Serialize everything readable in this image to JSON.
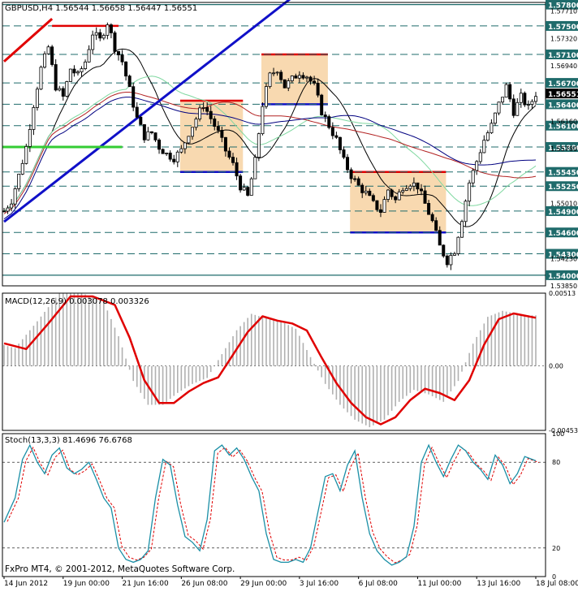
{
  "window": {
    "symbol_info": "GBPUSD,H4  1.56544 1.56658 1.56447 1.56551",
    "copyright": "FxPro MT4, © 2001-2012, MetaQuotes Software Corp."
  },
  "colors": {
    "background": "#ffffff",
    "frame": "#000000",
    "grid": "#9aa0a6",
    "bull_body": "#ffffff",
    "bear_body": "#000000",
    "level_line": "#1f6b6b",
    "level_label_bg": "#1f6b6b",
    "current_price_bg": "#000000",
    "trend_blue": "#1010c8",
    "trend_red": "#e00000",
    "support_green": "#33cc33",
    "box_fill": "#f8d9b0",
    "box_top": "#e00000",
    "box_bottom": "#1010c8",
    "ma_black": "#000000",
    "ma_navy": "#000080",
    "ma_red": "#b22222",
    "ma_green": "#7fd8a0",
    "macd_signal": "#e00000",
    "macd_hist": "#b0b0b0",
    "stoch_main": "#1a8fa6",
    "stoch_signal": "#e00000"
  },
  "chart_data": [
    {
      "type": "candlestick",
      "symbol": "GBPUSD",
      "timeframe": "H4",
      "ohlc_last": {
        "open": 1.56544,
        "high": 1.56658,
        "low": 1.56447,
        "close": 1.56551
      },
      "current_price": "1.56551",
      "ylim": [
        1.5385,
        1.5783
      ],
      "y_axis_labels": [
        "1.57710",
        "1.57320",
        "1.56940",
        "1.56160",
        "1.55780",
        "1.55010",
        "1.54230",
        "1.53850"
      ],
      "levels": [
        {
          "value": 1.578,
          "label": "1.57800"
        },
        {
          "value": 1.575,
          "label": "1.57500"
        },
        {
          "value": 1.571,
          "label": "1.57100"
        },
        {
          "value": 1.567,
          "label": "1.56700"
        },
        {
          "value": 1.564,
          "label": "1.56400"
        },
        {
          "value": 1.561,
          "label": "1.56100"
        },
        {
          "value": 1.558,
          "label": "1.55800"
        },
        {
          "value": 1.5545,
          "label": "1.55450"
        },
        {
          "value": 1.5525,
          "label": "1.55250"
        },
        {
          "value": 1.549,
          "label": "1.54900"
        },
        {
          "value": 1.546,
          "label": "1.54600"
        },
        {
          "value": 1.543,
          "label": "1.54300"
        },
        {
          "value": 1.54,
          "label": "1.54000"
        }
      ],
      "close_path": [
        [
          0,
          1.549
        ],
        [
          2,
          1.5505
        ],
        [
          4,
          1.554
        ],
        [
          6,
          1.558
        ],
        [
          8,
          1.564
        ],
        [
          10,
          1.569
        ],
        [
          12,
          1.572
        ],
        [
          14,
          1.5665
        ],
        [
          16,
          1.565
        ],
        [
          18,
          1.569
        ],
        [
          20,
          1.568
        ],
        [
          22,
          1.57
        ],
        [
          24,
          1.574
        ],
        [
          26,
          1.573
        ],
        [
          28,
          1.5755
        ],
        [
          30,
          1.572
        ],
        [
          32,
          1.57
        ],
        [
          34,
          1.566
        ],
        [
          36,
          1.562
        ],
        [
          38,
          1.5595
        ],
        [
          40,
          1.56
        ],
        [
          42,
          1.558
        ],
        [
          44,
          1.557
        ],
        [
          46,
          1.5565
        ],
        [
          48,
          1.5575
        ],
        [
          50,
          1.56
        ],
        [
          52,
          1.562
        ],
        [
          54,
          1.564
        ],
        [
          56,
          1.562
        ],
        [
          58,
          1.56
        ],
        [
          60,
          1.5575
        ],
        [
          62,
          1.5555
        ],
        [
          64,
          1.5525
        ],
        [
          66,
          1.551
        ],
        [
          68,
          1.556
        ],
        [
          70,
          1.564
        ],
        [
          72,
          1.568
        ],
        [
          74,
          1.569
        ],
        [
          76,
          1.5665
        ],
        [
          78,
          1.5675
        ],
        [
          80,
          1.5685
        ],
        [
          82,
          1.568
        ],
        [
          84,
          1.5665
        ],
        [
          86,
          1.563
        ],
        [
          88,
          1.561
        ],
        [
          90,
          1.559
        ],
        [
          92,
          1.556
        ],
        [
          94,
          1.554
        ],
        [
          96,
          1.5525
        ],
        [
          98,
          1.5515
        ],
        [
          100,
          1.55
        ],
        [
          102,
          1.549
        ],
        [
          104,
          1.552
        ],
        [
          106,
          1.5505
        ],
        [
          108,
          1.5525
        ],
        [
          110,
          1.553
        ],
        [
          112,
          1.5525
        ],
        [
          114,
          1.55
        ],
        [
          116,
          1.5475
        ],
        [
          118,
          1.544
        ],
        [
          120,
          1.542
        ],
        [
          122,
          1.5435
        ],
        [
          124,
          1.548
        ],
        [
          126,
          1.553
        ],
        [
          128,
          1.556
        ],
        [
          130,
          1.559
        ],
        [
          132,
          1.561
        ],
        [
          134,
          1.564
        ],
        [
          136,
          1.5665
        ],
        [
          138,
          1.563
        ],
        [
          140,
          1.565
        ],
        [
          142,
          1.5635
        ],
        [
          144,
          1.5655
        ]
      ],
      "x_labels": [
        "14 Jun 2012",
        "19 Jun 00:00",
        "21 Jun 16:00",
        "26 Jun 08:00",
        "29 Jun 00:00",
        "3 Jul 16:00",
        "6 Jul 08:00",
        "11 Jul 00:00",
        "13 Jul 16:00",
        "18 Jul 08:00"
      ]
    },
    {
      "type": "macd",
      "label": "MACD(12,26,9) 0.003078 0.003326",
      "params": [
        12,
        26,
        9
      ],
      "macd": 0.003078,
      "signal": 0.003326,
      "ylim": [
        -0.00453,
        0.00513
      ],
      "y_axis_labels": [
        "0.00513",
        "0.00",
        "-0.00453"
      ],
      "signal_path": [
        [
          0,
          0.0016
        ],
        [
          6,
          0.0012
        ],
        [
          12,
          0.003
        ],
        [
          18,
          0.0049
        ],
        [
          24,
          0.0049
        ],
        [
          30,
          0.0043
        ],
        [
          34,
          0.002
        ],
        [
          38,
          -0.001
        ],
        [
          42,
          -0.0026
        ],
        [
          46,
          -0.0026
        ],
        [
          50,
          -0.0018
        ],
        [
          54,
          -0.0012
        ],
        [
          58,
          -0.0008
        ],
        [
          62,
          0.0008
        ],
        [
          66,
          0.0024
        ],
        [
          70,
          0.0035
        ],
        [
          74,
          0.0032
        ],
        [
          78,
          0.003
        ],
        [
          82,
          0.0025
        ],
        [
          86,
          0.0006
        ],
        [
          90,
          -0.0012
        ],
        [
          94,
          -0.0026
        ],
        [
          98,
          -0.0036
        ],
        [
          102,
          -0.0041
        ],
        [
          106,
          -0.0036
        ],
        [
          110,
          -0.0024
        ],
        [
          114,
          -0.0016
        ],
        [
          118,
          -0.0019
        ],
        [
          122,
          -0.0024
        ],
        [
          126,
          -0.001
        ],
        [
          130,
          0.0015
        ],
        [
          134,
          0.0033
        ],
        [
          138,
          0.0037
        ],
        [
          144,
          0.0034
        ]
      ]
    },
    {
      "type": "stochastic",
      "label": "Stoch(13,3,3) 81.4696 76.6768",
      "params": [
        13,
        3,
        3
      ],
      "main": 81.4696,
      "signal": 76.6768,
      "ylim": [
        0,
        100
      ],
      "y_axis_labels": [
        "100",
        "80",
        "20",
        "0"
      ],
      "main_path": [
        [
          0,
          38
        ],
        [
          3,
          55
        ],
        [
          5,
          82
        ],
        [
          7,
          92
        ],
        [
          9,
          80
        ],
        [
          11,
          72
        ],
        [
          13,
          85
        ],
        [
          15,
          90
        ],
        [
          17,
          76
        ],
        [
          19,
          72
        ],
        [
          21,
          75
        ],
        [
          23,
          80
        ],
        [
          25,
          68
        ],
        [
          27,
          55
        ],
        [
          29,
          48
        ],
        [
          31,
          20
        ],
        [
          33,
          12
        ],
        [
          35,
          10
        ],
        [
          37,
          12
        ],
        [
          39,
          18
        ],
        [
          41,
          55
        ],
        [
          43,
          82
        ],
        [
          45,
          78
        ],
        [
          47,
          50
        ],
        [
          49,
          28
        ],
        [
          51,
          24
        ],
        [
          53,
          18
        ],
        [
          55,
          40
        ],
        [
          57,
          88
        ],
        [
          59,
          92
        ],
        [
          61,
          85
        ],
        [
          63,
          90
        ],
        [
          65,
          82
        ],
        [
          67,
          70
        ],
        [
          69,
          60
        ],
        [
          71,
          30
        ],
        [
          73,
          12
        ],
        [
          75,
          10
        ],
        [
          77,
          10
        ],
        [
          79,
          12
        ],
        [
          81,
          10
        ],
        [
          83,
          20
        ],
        [
          85,
          45
        ],
        [
          87,
          70
        ],
        [
          89,
          72
        ],
        [
          91,
          60
        ],
        [
          93,
          78
        ],
        [
          95,
          88
        ],
        [
          97,
          55
        ],
        [
          99,
          30
        ],
        [
          101,
          18
        ],
        [
          103,
          12
        ],
        [
          105,
          8
        ],
        [
          107,
          10
        ],
        [
          109,
          14
        ],
        [
          111,
          35
        ],
        [
          113,
          80
        ],
        [
          115,
          92
        ],
        [
          117,
          80
        ],
        [
          119,
          70
        ],
        [
          121,
          82
        ],
        [
          123,
          92
        ],
        [
          125,
          88
        ],
        [
          127,
          80
        ],
        [
          129,
          75
        ],
        [
          131,
          68
        ],
        [
          133,
          85
        ],
        [
          135,
          78
        ],
        [
          137,
          65
        ],
        [
          139,
          72
        ],
        [
          141,
          84
        ],
        [
          144,
          81
        ]
      ]
    }
  ]
}
